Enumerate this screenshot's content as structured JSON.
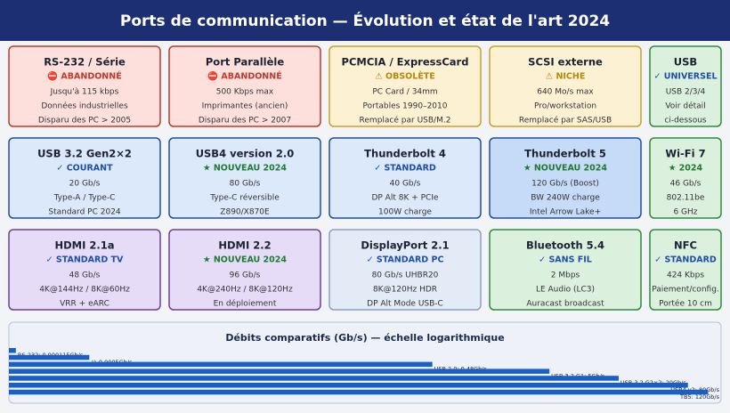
{
  "header": {
    "title": "Ports de communication — Évolution et état de l'art 2024"
  },
  "cards": [
    [
      {
        "title": "RS-232 / Série",
        "status": "⛔ ABANDONNÉ",
        "lines": [
          "Jusqu'à 115 kbps",
          "Données industrielles",
          "Disparu des PC > 2005"
        ]
      },
      {
        "title": "Port Parallèle",
        "status": "⛔ ABANDONNÉ",
        "lines": [
          "500 Kbps max",
          "Imprimantes (ancien)",
          "Disparu des PC > 2007"
        ]
      },
      {
        "title": "PCMCIA / ExpressCard",
        "status": "⚠ OBSOLÈTE",
        "lines": [
          "PC Card / 34mm",
          "Portables 1990–2010",
          "Remplacé par USB/M.2"
        ]
      },
      {
        "title": "SCSI externe",
        "status": "⚠ NICHE",
        "lines": [
          "640 Mo/s max",
          "Pro/workstation",
          "Remplacé par SAS/USB"
        ]
      },
      {
        "title": "USB",
        "status": "✓ UNIVERSEL",
        "lines": [
          "USB 2/3/4",
          "Voir détail",
          "ci-dessous"
        ]
      }
    ],
    [
      {
        "title": "USB 3.2 Gen2×2",
        "status": "✓ COURANT",
        "lines": [
          "20 Gb/s",
          "Type-A / Type-C",
          "Standard PC 2024"
        ]
      },
      {
        "title": "USB4 version 2.0",
        "status": "★ NOUVEAU 2024",
        "lines": [
          "80 Gb/s",
          "Type-C réversible",
          "Z890/X870E"
        ]
      },
      {
        "title": "Thunderbolt 4",
        "status": "✓ STANDARD",
        "lines": [
          "40 Gb/s",
          "DP Alt 8K + PCIe",
          "100W charge"
        ]
      },
      {
        "title": "Thunderbolt 5",
        "status": "★ NOUVEAU 2024",
        "lines": [
          "120 Gb/s (Boost)",
          "BW 240W charge",
          "Intel Arrow Lake+"
        ]
      },
      {
        "title": "Wi-Fi 7",
        "status": "★ 2024",
        "lines": [
          "46 Gb/s",
          "802.11be",
          "6 GHz"
        ]
      }
    ],
    [
      {
        "title": "HDMI 2.1a",
        "status": "✓ STANDARD TV",
        "lines": [
          "48 Gb/s",
          "4K@144Hz / 8K@60Hz",
          "VRR + eARC"
        ]
      },
      {
        "title": "HDMI 2.2",
        "status": "★ NOUVEAU 2024",
        "lines": [
          "96 Gb/s",
          "4K@240Hz / 8K@120Hz",
          "En déploiement"
        ]
      },
      {
        "title": "DisplayPort 2.1",
        "status": "✓ STANDARD PC",
        "lines": [
          "80 Gb/s UHBR20",
          "8K@120Hz HDR",
          "DP Alt Mode USB-C"
        ]
      },
      {
        "title": "Bluetooth 5.4",
        "status": "✓ SANS FIL",
        "lines": [
          "2 Mbps",
          "LE Audio (LC3)",
          "Auracast broadcast"
        ]
      },
      {
        "title": "NFC",
        "status": "✓ STANDARD",
        "lines": [
          "424 Kbps",
          "Paiement/config.",
          "Portée 10 cm"
        ]
      }
    ]
  ],
  "chart_data": {
    "type": "bar",
    "orientation": "horizontal",
    "title": "Débits comparatifs (Gb/s) — échelle logarithmique",
    "values": [
      0.000115,
      0.0005,
      0.48,
      5,
      20,
      80,
      120
    ],
    "value_labels": [
      "RS-232: 0.000115Gb/s",
      "//: 0.0005Gb/s",
      "USB 2.0: 0.48Gb/s",
      "USB 3.2 G1: 5Gb/s",
      "USB 3.2 G2×2: 20Gb/s",
      "USB4 v2: 80Gb/s",
      "TB5: 120Gb/s"
    ],
    "xlim": [
      0.0001,
      150
    ],
    "log_scale": true,
    "color": "#1a5fc4"
  }
}
